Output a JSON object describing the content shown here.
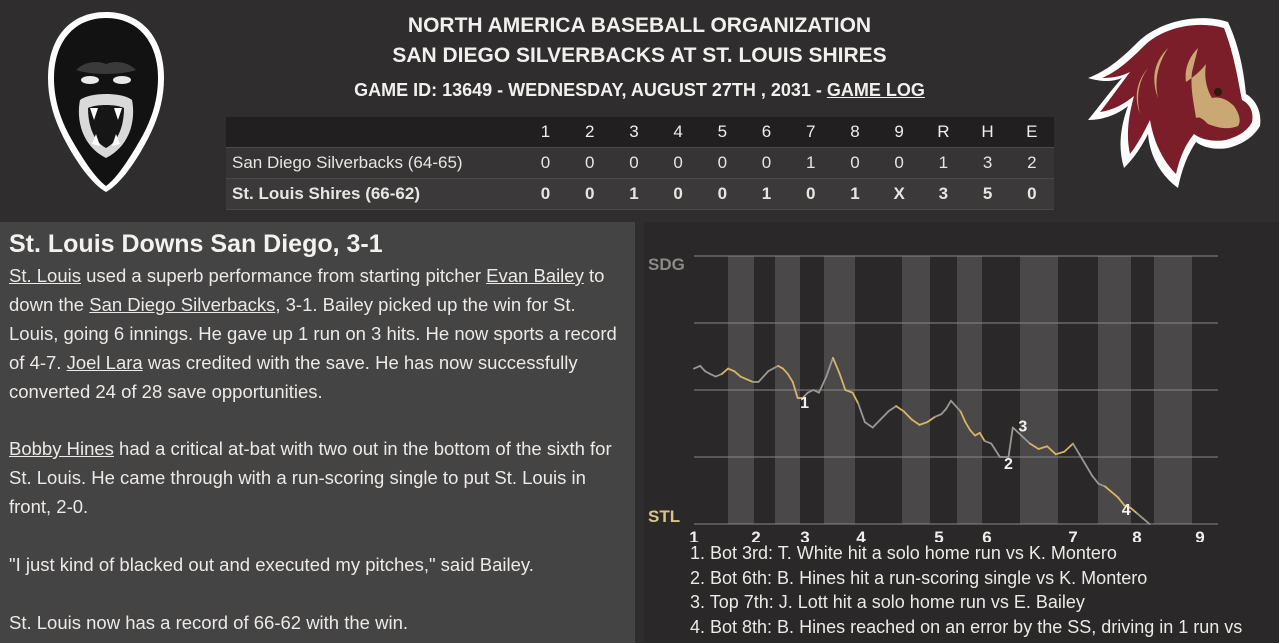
{
  "header": {
    "league": "NORTH AMERICA BASEBALL ORGANIZATION",
    "matchup": "SAN DIEGO SILVERBACKS AT ST. LOUIS SHIRES",
    "game_info": "GAME ID: 13649 - WEDNESDAY, AUGUST 27TH , 2031 - ",
    "game_log_link": "GAME LOG"
  },
  "linescore": {
    "headers": [
      "1",
      "2",
      "3",
      "4",
      "5",
      "6",
      "7",
      "8",
      "9",
      "R",
      "H",
      "E"
    ],
    "away": {
      "name": "San Diego Silverbacks (64-65)",
      "cells": [
        "0",
        "0",
        "0",
        "0",
        "0",
        "0",
        "1",
        "0",
        "0",
        "1",
        "3",
        "2"
      ]
    },
    "home": {
      "name": "St. Louis Shires (66-62)",
      "cells": [
        "0",
        "0",
        "1",
        "0",
        "0",
        "1",
        "0",
        "1",
        "X",
        "3",
        "5",
        "0"
      ]
    }
  },
  "story": {
    "headline": "St. Louis Downs San Diego, 3-1",
    "p1": [
      {
        "t": "St. Louis",
        "link": true
      },
      {
        "t": " used a superb performance from starting pitcher ",
        "link": false
      },
      {
        "t": "Evan Bailey",
        "link": true
      },
      {
        "t": " to down the ",
        "link": false
      },
      {
        "t": "San Diego Silverbacks",
        "link": true
      },
      {
        "t": ", 3-1. Bailey picked up the win for St. Louis, going 6 innings. He gave up 1 run on 3 hits. He now sports a record of 4-7. ",
        "link": false
      },
      {
        "t": "Joel Lara",
        "link": true
      },
      {
        "t": " was credited with the save. He has now successfully converted 24 of 28 save opportunities.",
        "link": false
      }
    ],
    "p2": [
      {
        "t": "Bobby Hines",
        "link": true
      },
      {
        "t": " had a critical at-bat with two out in the bottom of the sixth for St. Louis. He came through with a run-scoring single to put St. Louis in front, 2-0.",
        "link": false
      }
    ],
    "p3": "\"I just kind of blacked out and executed my pitches,\" said Bailey.",
    "p4": "St. Louis now has a record of 66-62 with the win."
  },
  "chart": {
    "top_label": "SDG",
    "bottom_label": "STL",
    "innings": [
      "1",
      "2",
      "3",
      "4",
      "5",
      "6",
      "7",
      "8",
      "9"
    ],
    "marker_labels": [
      "1",
      "2",
      "3",
      "4"
    ],
    "notes": [
      "1. Bot 3rd: T. White hit a solo home run vs K. Montero",
      "2. Bot 6th: B. Hines hit a run-scoring single vs K. Montero",
      "3. Top 7th: J. Lott hit a solo home run vs E. Bailey",
      "4. Bot 8th: B. Hines reached on an error by the SS, driving in 1 run vs"
    ],
    "colors": {
      "away_line": "#9a9794",
      "home_line": "#d8b466",
      "band": "#4a4848",
      "label": "#d9c488",
      "sdg_label": "#8c8a87"
    }
  },
  "chart_data": {
    "type": "line",
    "title": "",
    "xlabel": "",
    "ylabel": "",
    "ylim": [
      0,
      1
    ],
    "x_ticks": [
      "1",
      "2",
      "3",
      "4",
      "5",
      "6",
      "7",
      "8",
      "9"
    ],
    "series": [
      {
        "values": [
          [
            1.0,
            0.58
          ],
          [
            1.1,
            0.59
          ],
          [
            1.18,
            0.57
          ],
          [
            1.26,
            0.56
          ],
          [
            1.35,
            0.55
          ],
          [
            1.45,
            0.56
          ],
          [
            1.55,
            0.58
          ],
          [
            1.65,
            0.57
          ],
          [
            1.75,
            0.55
          ],
          [
            1.85,
            0.54
          ],
          [
            1.95,
            0.53
          ],
          [
            2.05,
            0.53
          ],
          [
            2.15,
            0.55
          ],
          [
            2.25,
            0.57
          ],
          [
            2.35,
            0.58
          ],
          [
            2.45,
            0.59
          ],
          [
            2.55,
            0.58
          ],
          [
            2.65,
            0.56
          ],
          [
            2.75,
            0.53
          ],
          [
            2.85,
            0.47
          ],
          [
            2.95,
            0.47
          ],
          [
            3.05,
            0.49
          ],
          [
            3.15,
            0.5
          ],
          [
            3.25,
            0.49
          ],
          [
            3.38,
            0.55
          ],
          [
            3.5,
            0.62
          ],
          [
            3.62,
            0.56
          ],
          [
            3.72,
            0.5
          ],
          [
            3.85,
            0.49
          ],
          [
            3.95,
            0.45
          ],
          [
            4.05,
            0.38
          ],
          [
            4.15,
            0.36
          ],
          [
            4.25,
            0.39
          ],
          [
            4.35,
            0.42
          ],
          [
            4.45,
            0.44
          ],
          [
            4.55,
            0.42
          ],
          [
            4.65,
            0.39
          ],
          [
            4.75,
            0.37
          ],
          [
            4.85,
            0.38
          ],
          [
            4.95,
            0.4
          ],
          [
            5.05,
            0.41
          ],
          [
            5.15,
            0.43
          ],
          [
            5.25,
            0.46
          ],
          [
            5.35,
            0.44
          ],
          [
            5.45,
            0.42
          ],
          [
            5.55,
            0.38
          ],
          [
            5.65,
            0.35
          ],
          [
            5.75,
            0.33
          ],
          [
            5.85,
            0.34
          ],
          [
            5.95,
            0.31
          ],
          [
            6.05,
            0.3
          ],
          [
            6.15,
            0.25
          ],
          [
            6.25,
            0.25
          ],
          [
            6.3,
            0.36
          ],
          [
            6.4,
            0.33
          ],
          [
            6.5,
            0.3
          ],
          [
            6.6,
            0.28
          ],
          [
            6.7,
            0.29
          ],
          [
            6.8,
            0.26
          ],
          [
            6.9,
            0.27
          ],
          [
            7.0,
            0.3
          ],
          [
            7.1,
            0.26
          ],
          [
            7.2,
            0.22
          ],
          [
            7.3,
            0.18
          ],
          [
            7.4,
            0.15
          ],
          [
            7.5,
            0.14
          ],
          [
            7.6,
            0.12
          ],
          [
            7.7,
            0.1
          ],
          [
            7.8,
            0.07
          ],
          [
            7.9,
            0.06
          ],
          [
            8.0,
            0.04
          ],
          [
            8.1,
            0.02
          ],
          [
            8.2,
            0.0
          ]
        ]
      }
    ],
    "markers": [
      {
        "label": "1",
        "x": 2.95
      },
      {
        "label": "2",
        "x": 6.25
      },
      {
        "label": "3",
        "x": 6.3
      },
      {
        "label": "4",
        "x": 7.8
      }
    ]
  }
}
